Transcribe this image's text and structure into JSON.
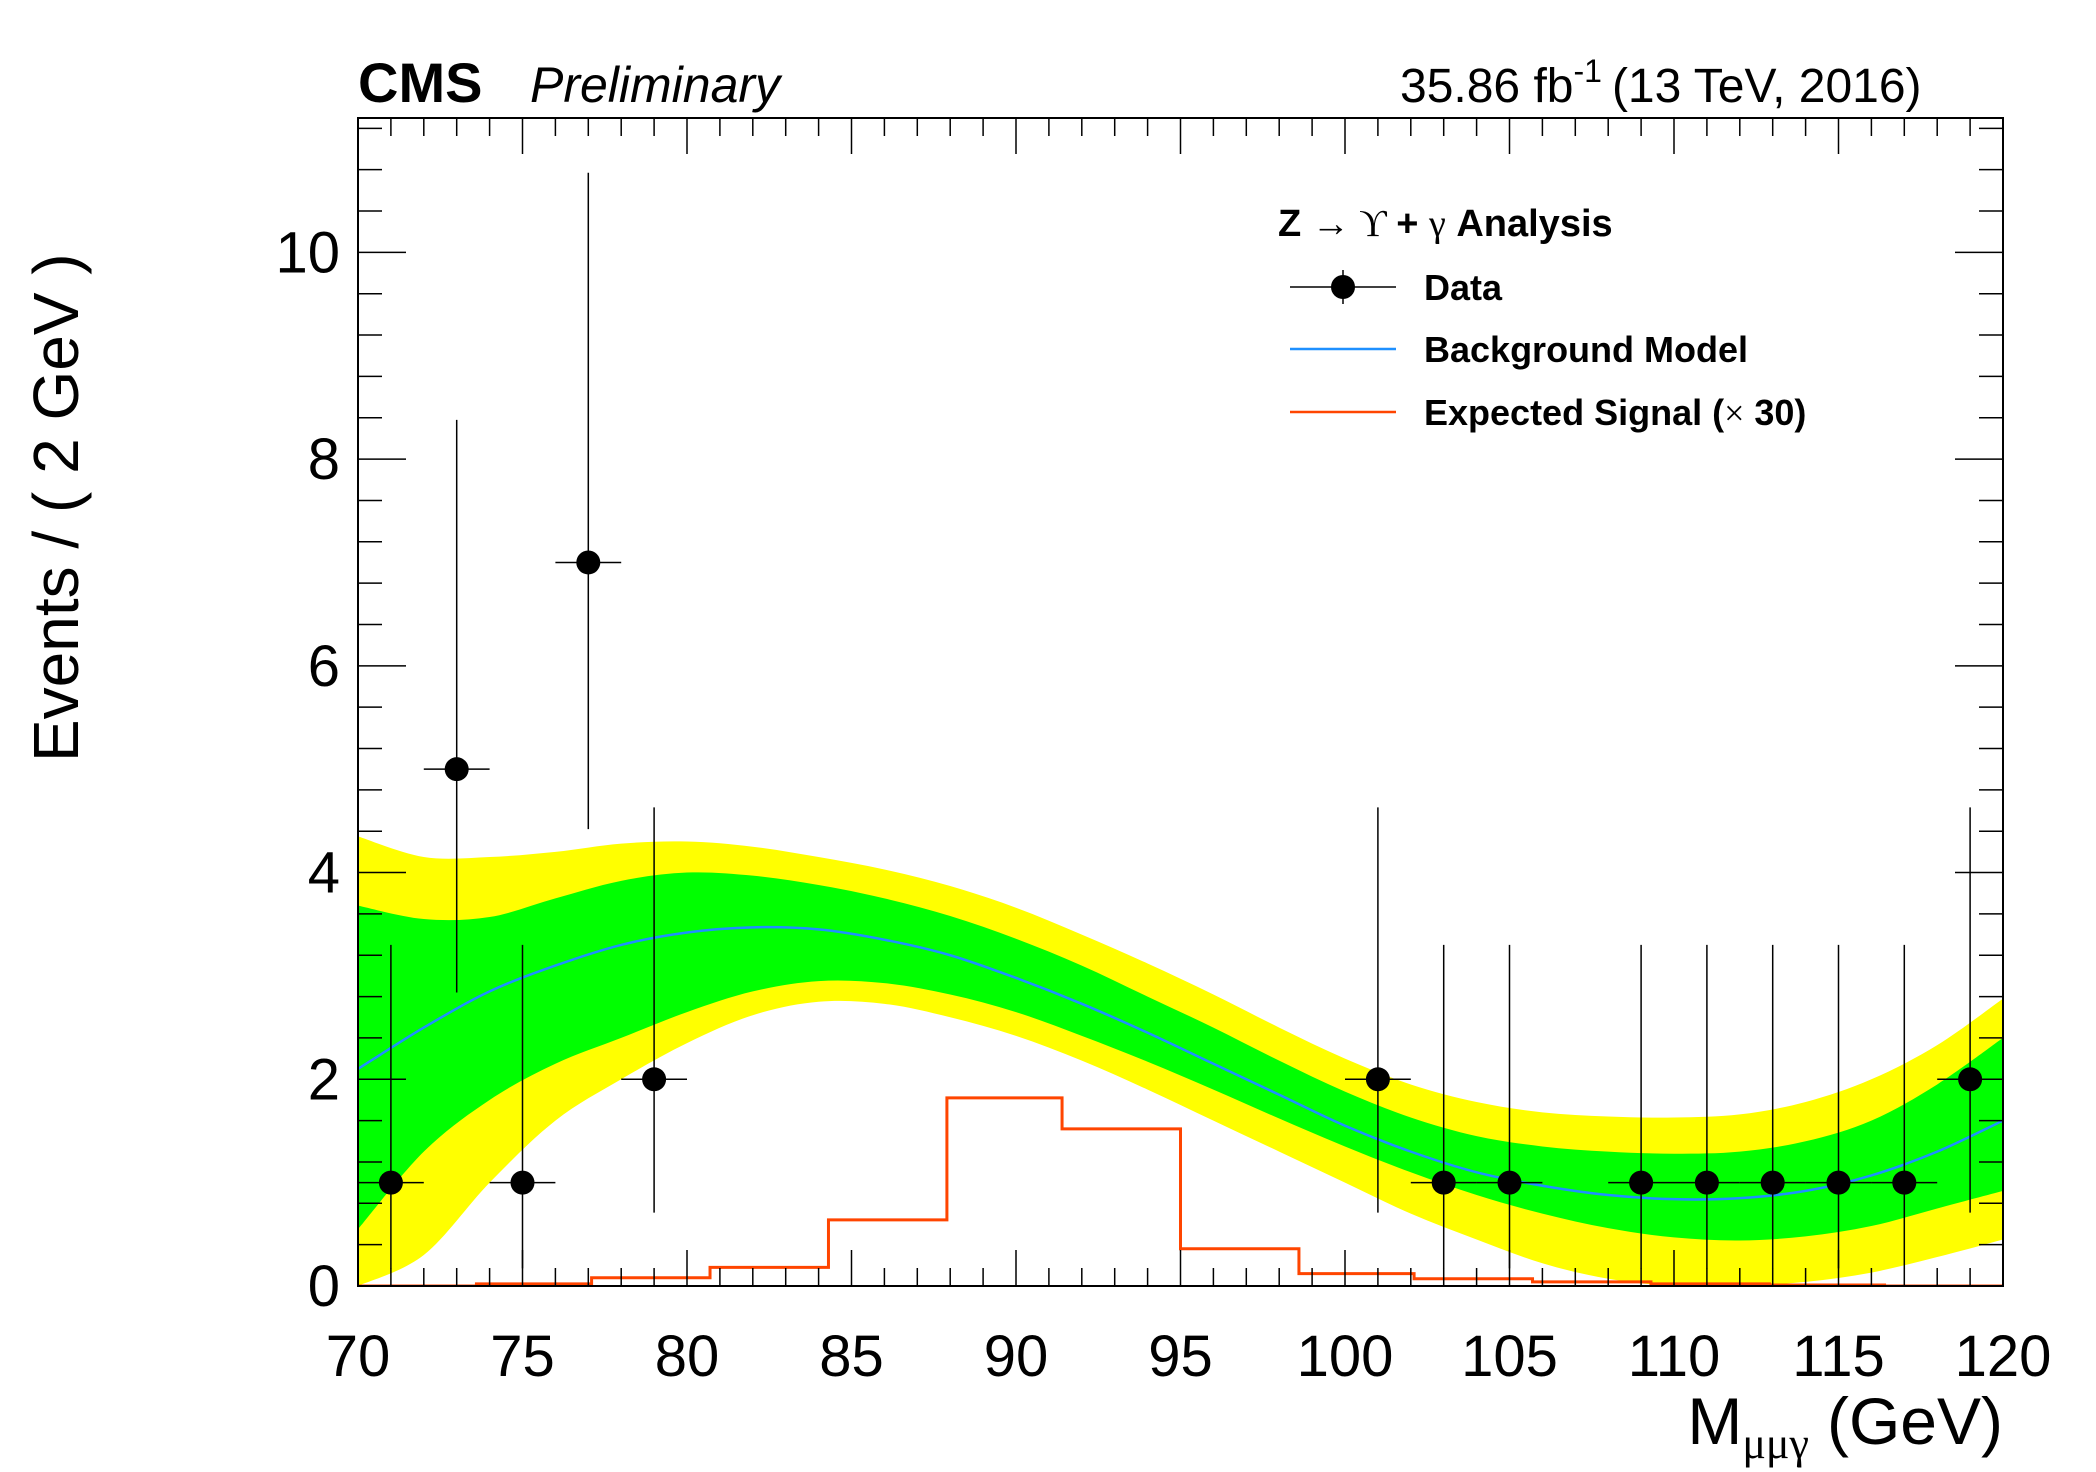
{
  "header": {
    "experiment": "CMS",
    "status": "Preliminary",
    "lumi_value": "35.86 fb",
    "lumi_exp": "-1",
    "energy": "(13 TeV, 2016)"
  },
  "colors": {
    "band_2sigma": "#ffff00",
    "band_1sigma": "#00ff00",
    "background_model": "#1e90ff",
    "signal": "#ff4500",
    "data": "#000000"
  },
  "chart_data": {
    "type": "line",
    "title": "",
    "xlabel_main": "M",
    "xlabel_sub": "μμγ",
    "xlabel_unit": "(GeV)",
    "ylabel": "Events / ( 2 GeV )",
    "xlim": [
      70,
      120
    ],
    "ylim": [
      0,
      11.3
    ],
    "x_ticks": [
      70,
      75,
      80,
      85,
      90,
      95,
      100,
      105,
      110,
      115,
      120
    ],
    "y_ticks": [
      0,
      2,
      4,
      6,
      8,
      10
    ],
    "grid": false,
    "legend": {
      "position": "top-right",
      "title": "Z → ϒ + γ Analysis",
      "title_parts": [
        "Z ",
        "→",
        " ϒ ",
        "+ ",
        "γ",
        " Analysis"
      ],
      "entries": [
        {
          "label": "Data",
          "style": "marker"
        },
        {
          "label": "Background Model",
          "style": "line",
          "color": "#1e90ff"
        },
        {
          "label": "Expected Signal (",
          "label_sym": "×",
          "label_end": " 30)",
          "style": "line",
          "color": "#ff4500"
        }
      ]
    },
    "data_points": {
      "name": "Data",
      "x": [
        71,
        73,
        75,
        77,
        79,
        101,
        103,
        105,
        109,
        111,
        113,
        115,
        117,
        119
      ],
      "y": [
        1,
        5,
        1,
        7,
        2,
        2,
        1,
        1,
        1,
        1,
        1,
        1,
        1,
        2
      ],
      "y_err_low": [
        0.83,
        2.16,
        0.83,
        2.58,
        1.29,
        1.29,
        0.83,
        0.83,
        0.83,
        0.83,
        0.83,
        0.83,
        0.83,
        1.29
      ],
      "y_err_high": [
        2.3,
        3.38,
        2.3,
        3.77,
        2.63,
        2.63,
        2.3,
        2.3,
        2.3,
        2.3,
        2.3,
        2.3,
        2.3,
        2.63
      ],
      "x_err": 1
    },
    "background_model": {
      "name": "Background Model",
      "x": [
        70,
        72,
        74,
        76,
        78,
        80,
        82,
        84,
        86,
        88,
        90,
        92,
        94,
        96,
        98,
        100,
        102,
        104,
        106,
        108,
        110,
        112,
        114,
        116,
        118,
        120
      ],
      "y": [
        2.1,
        2.5,
        2.85,
        3.1,
        3.3,
        3.42,
        3.47,
        3.45,
        3.35,
        3.2,
        2.98,
        2.73,
        2.45,
        2.15,
        1.85,
        1.55,
        1.3,
        1.1,
        0.97,
        0.88,
        0.84,
        0.85,
        0.92,
        1.07,
        1.3,
        1.6
      ],
      "band_1sigma_low": [
        0.55,
        1.3,
        1.8,
        2.15,
        2.4,
        2.65,
        2.85,
        2.95,
        2.93,
        2.82,
        2.65,
        2.42,
        2.17,
        1.9,
        1.62,
        1.35,
        1.1,
        0.88,
        0.7,
        0.56,
        0.47,
        0.44,
        0.48,
        0.58,
        0.75,
        0.92
      ],
      "band_1sigma_high": [
        3.68,
        3.55,
        3.57,
        3.75,
        3.92,
        4.0,
        3.97,
        3.88,
        3.75,
        3.58,
        3.36,
        3.1,
        2.8,
        2.5,
        2.18,
        1.88,
        1.63,
        1.45,
        1.35,
        1.3,
        1.28,
        1.3,
        1.4,
        1.6,
        1.95,
        2.4
      ],
      "band_2sigma_low": [
        0.0,
        0.3,
        1.0,
        1.6,
        2.0,
        2.35,
        2.62,
        2.75,
        2.73,
        2.6,
        2.42,
        2.18,
        1.9,
        1.6,
        1.3,
        1.0,
        0.7,
        0.45,
        0.22,
        0.07,
        0.0,
        0.0,
        0.04,
        0.13,
        0.28,
        0.45
      ],
      "band_2sigma_high": [
        4.35,
        4.15,
        4.15,
        4.2,
        4.28,
        4.3,
        4.25,
        4.15,
        4.03,
        3.87,
        3.66,
        3.4,
        3.12,
        2.82,
        2.5,
        2.2,
        1.95,
        1.78,
        1.68,
        1.64,
        1.63,
        1.66,
        1.78,
        2.0,
        2.33,
        2.78
      ]
    },
    "expected_signal": {
      "name": "Expected Signal (× 30)",
      "bin_edges": [
        70,
        73.6,
        77.1,
        80.7,
        84.3,
        87.9,
        91.4,
        95.0,
        98.6,
        102.1,
        105.7,
        109.3,
        112.9,
        116.4,
        120
      ],
      "values": [
        0.0,
        0.02,
        0.08,
        0.18,
        0.64,
        1.82,
        1.52,
        0.36,
        0.12,
        0.07,
        0.04,
        0.02,
        0.01,
        0.0
      ]
    }
  }
}
